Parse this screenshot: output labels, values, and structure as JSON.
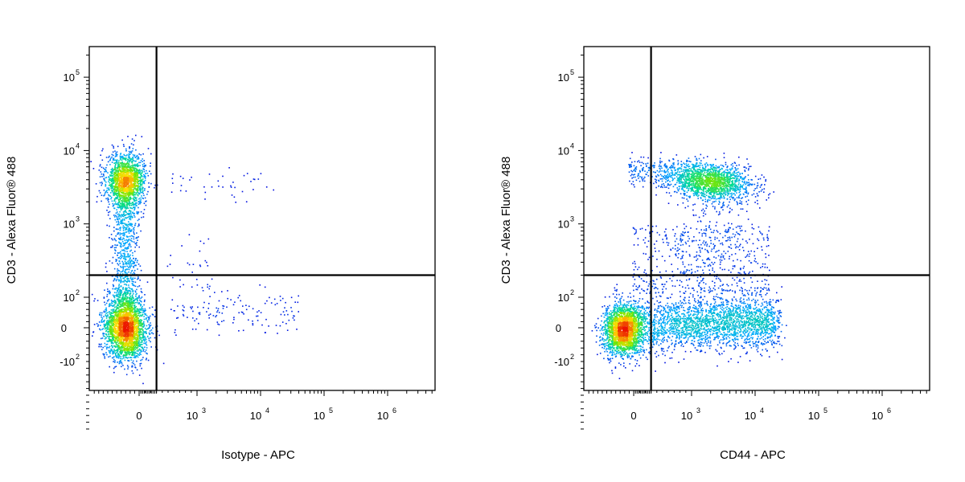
{
  "chart_data": [
    {
      "type": "scatter",
      "subtype": "flow-cytometry-density-dot-plot",
      "xlabel": "Isotype -  APC",
      "ylabel": "CD3 - Alexa Fluor® 488",
      "x_scale": "biexponential",
      "y_scale": "biexponential",
      "x_ticks": [
        {
          "value": 0,
          "base": "0",
          "exp": ""
        },
        {
          "value": 1000,
          "base": "10",
          "exp": "3"
        },
        {
          "value": 10000,
          "base": "10",
          "exp": "4"
        },
        {
          "value": 100000,
          "base": "10",
          "exp": "5"
        },
        {
          "value": 1000000,
          "base": "10",
          "exp": "6"
        }
      ],
      "y_ticks": [
        {
          "value": -100,
          "base": "-10",
          "exp": "2"
        },
        {
          "value": 0,
          "base": "0",
          "exp": ""
        },
        {
          "value": 100,
          "base": "10",
          "exp": "2"
        },
        {
          "value": 1000,
          "base": "10",
          "exp": "3"
        },
        {
          "value": 10000,
          "base": "10",
          "exp": "4"
        },
        {
          "value": 100000,
          "base": "10",
          "exp": "5"
        }
      ],
      "xlim": [
        -300,
        6000000
      ],
      "ylim": [
        -500,
        250000
      ],
      "gate": {
        "x": 300,
        "y": 200
      },
      "populations": [
        {
          "label": "CD3+",
          "x_center": -50,
          "y_center": 3200,
          "relative_size": "large"
        },
        {
          "label": "CD3-",
          "x_center": -50,
          "y_center": 0,
          "relative_size": "large"
        },
        {
          "label": "sparse isotype-positive events",
          "x_range": [
            500,
            50000
          ],
          "relative_size": "small"
        }
      ]
    },
    {
      "type": "scatter",
      "subtype": "flow-cytometry-density-dot-plot",
      "xlabel": "CD44 - APC",
      "ylabel": "CD3 - Alexa Fluor® 488",
      "x_scale": "biexponential",
      "y_scale": "biexponential",
      "x_ticks": [
        {
          "value": 0,
          "base": "0",
          "exp": ""
        },
        {
          "value": 1000,
          "base": "10",
          "exp": "3"
        },
        {
          "value": 10000,
          "base": "10",
          "exp": "4"
        },
        {
          "value": 100000,
          "base": "10",
          "exp": "5"
        },
        {
          "value": 1000000,
          "base": "10",
          "exp": "6"
        }
      ],
      "y_ticks": [
        {
          "value": -100,
          "base": "-10",
          "exp": "2"
        },
        {
          "value": 0,
          "base": "0",
          "exp": ""
        },
        {
          "value": 100,
          "base": "10",
          "exp": "2"
        },
        {
          "value": 1000,
          "base": "10",
          "exp": "3"
        },
        {
          "value": 10000,
          "base": "10",
          "exp": "4"
        },
        {
          "value": 100000,
          "base": "10",
          "exp": "5"
        }
      ],
      "xlim": [
        -300,
        6000000
      ],
      "ylim": [
        -500,
        250000
      ],
      "gate": {
        "x": 300,
        "y": 200
      },
      "populations": [
        {
          "label": "CD3+ CD44 high",
          "x_center": 2500,
          "y_center": 3200,
          "relative_size": "large"
        },
        {
          "label": "CD3- CD44 low",
          "x_center": -50,
          "y_center": 0,
          "relative_size": "large"
        },
        {
          "label": "CD3- CD44 intermediate-high smear",
          "x_range": [
            300,
            10000
          ],
          "y_center": 0,
          "relative_size": "large"
        }
      ]
    }
  ]
}
